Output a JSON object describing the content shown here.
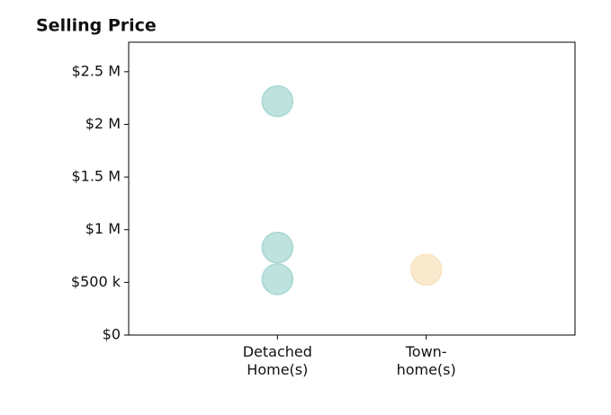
{
  "chart_data": {
    "type": "scatter",
    "title": "Selling Price",
    "categories": [
      "Detached\nHome(s)",
      "Town-\nhome(s)"
    ],
    "x": [
      "Detached\nHome(s)",
      "Detached\nHome(s)",
      "Detached\nHome(s)",
      "Town-\nhome(s)"
    ],
    "y": [
      2220000,
      830000,
      530000,
      620000
    ],
    "colors": [
      "#a8d8d3",
      "#a8d8d3",
      "#a8d8d3",
      "#f7e3bd"
    ],
    "ylim": [
      0,
      2780000
    ],
    "yticks": [
      {
        "value": 0,
        "label": "$0"
      },
      {
        "value": 500000,
        "label": "$500 k"
      },
      {
        "value": 1000000,
        "label": "$1 M"
      },
      {
        "value": 1500000,
        "label": "$1.5 M"
      },
      {
        "value": 2000000,
        "label": "$2 M"
      },
      {
        "value": 2500000,
        "label": "$2.5 M"
      }
    ],
    "grid": false
  }
}
